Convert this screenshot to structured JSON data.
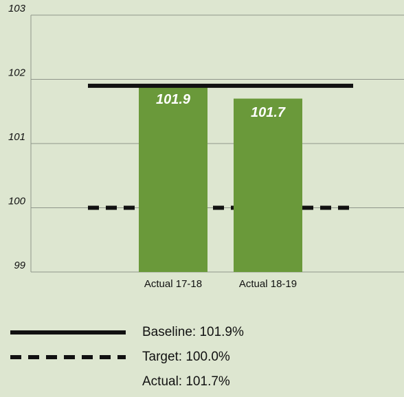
{
  "chart_data": {
    "type": "bar",
    "categories": [
      "Actual 17-18",
      "Actual 18-19"
    ],
    "values": [
      101.9,
      101.7
    ],
    "color": "#6a993a",
    "ylim": [
      99,
      103
    ],
    "yticks": [
      99,
      100,
      101,
      102,
      103
    ],
    "grid": true,
    "reference_lines": [
      {
        "value": 101.9,
        "style": "solid",
        "color": "#111111"
      },
      {
        "value": 100,
        "style": "dashed",
        "color": "#111111"
      }
    ],
    "legend": [
      {
        "label": "Baseline: 101.9%",
        "style": "solid"
      },
      {
        "label": "Target: 100.0%",
        "style": "dashed"
      },
      {
        "label": "Actual: 101.7%"
      }
    ]
  }
}
